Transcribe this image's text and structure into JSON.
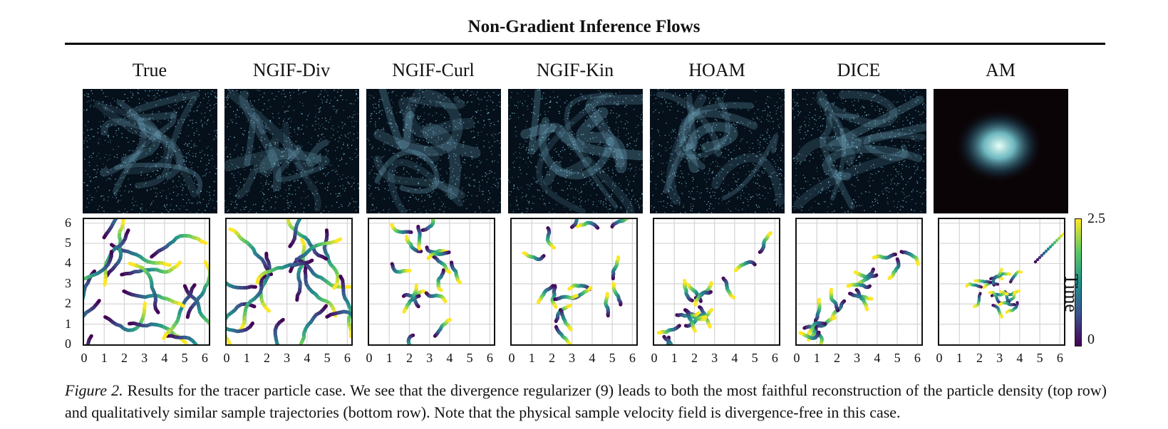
{
  "title": "Non-Gradient Inference Flows",
  "columns": [
    "True",
    "NGIF-Div",
    "NGIF-Curl",
    "NGIF-Kin",
    "HOAM",
    "DICE",
    "AM"
  ],
  "x_ticks": [
    "0",
    "1",
    "2",
    "3",
    "4",
    "5",
    "6"
  ],
  "y_ticks": [
    "0",
    "1",
    "2",
    "3",
    "4",
    "5",
    "6"
  ],
  "colorbar": {
    "label": "Time",
    "min_label": "0",
    "max_label": "2.5",
    "colors": [
      "#440154",
      "#3b528b",
      "#21918c",
      "#5ec962",
      "#fde725"
    ]
  },
  "density_colors": {
    "background": "#05101a",
    "particle": "#8fd3ee",
    "am_background": "#0a0407",
    "am_particle": "#e0fff4"
  },
  "caption": {
    "fig_label": "Figure 2.",
    "text": " Results for the tracer particle case. We see that the divergence regularizer (9) leads to both the most faithful reconstruction of the particle density (top row) and qualitatively similar sample trajectories (bottom row). Note that the physical sample velocity field is divergence-free in this case."
  }
}
